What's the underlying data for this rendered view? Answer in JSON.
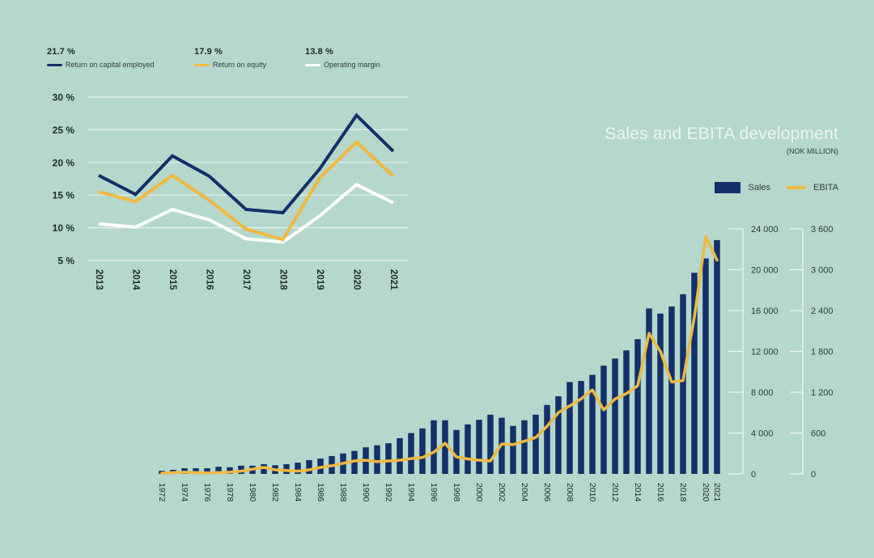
{
  "colors": {
    "background": "#b5d7cc",
    "navy": "#13306a",
    "yellow": "#f0b840",
    "white": "#ffffff",
    "grid": "#e6f1ed"
  },
  "chart_data": [
    {
      "type": "line",
      "title": "",
      "categories": [
        "2013",
        "2014",
        "2015",
        "2016",
        "2017",
        "2018",
        "2019",
        "2020",
        "2021"
      ],
      "ylim": [
        5,
        30
      ],
      "yticks": [
        5,
        10,
        15,
        20,
        25,
        30
      ],
      "ytick_labels": [
        "5 %",
        "10 %",
        "15 %",
        "20 %",
        "25 %",
        "30 %"
      ],
      "grid": true,
      "legend_position": "top-left",
      "series": [
        {
          "name": "Return on capital employed",
          "headline": "21.7 %",
          "color": "#13306a",
          "values": [
            18.0,
            15.1,
            21.0,
            17.9,
            12.8,
            12.3,
            19.0,
            27.2,
            21.7
          ]
        },
        {
          "name": "Return on equity",
          "headline": "17.9 %",
          "color": "#f0b840",
          "values": [
            15.5,
            14.0,
            18.0,
            14.2,
            9.8,
            8.2,
            17.6,
            23.1,
            17.9
          ]
        },
        {
          "name": "Operating margin",
          "headline": "13.8 %",
          "color": "#ffffff",
          "values": [
            10.6,
            10.1,
            12.8,
            11.2,
            8.3,
            7.8,
            11.8,
            16.6,
            13.8
          ]
        }
      ]
    },
    {
      "type": "bar",
      "title": "Sales and EBITA development",
      "subtitle": "(NOK MILLION)",
      "legend_position": "top-right",
      "x": [
        1972,
        1973,
        1974,
        1975,
        1976,
        1977,
        1978,
        1979,
        1980,
        1981,
        1982,
        1983,
        1984,
        1985,
        1986,
        1987,
        1988,
        1989,
        1990,
        1991,
        1992,
        1993,
        1994,
        1995,
        1996,
        1997,
        1998,
        1999,
        2000,
        2001,
        2002,
        2003,
        2004,
        2005,
        2006,
        2007,
        2008,
        2009,
        2010,
        2011,
        2012,
        2013,
        2014,
        2015,
        2016,
        2017,
        2018,
        2019,
        2020,
        2021
      ],
      "xtick_labels": [
        "1972",
        "1974",
        "1976",
        "1978",
        "1980",
        "1982",
        "1984",
        "1986",
        "1988",
        "1990",
        "1992",
        "1994",
        "1996",
        "1998",
        "2000",
        "2002",
        "2004",
        "2006",
        "2008",
        "2010",
        "2012",
        "2014",
        "2016",
        "2018",
        "2020",
        "2021"
      ],
      "series": [
        {
          "name": "Sales",
          "type": "bar",
          "axis": "left",
          "color": "#13306a",
          "values": [
            300,
            400,
            550,
            550,
            550,
            700,
            650,
            800,
            800,
            950,
            850,
            950,
            1100,
            1350,
            1500,
            1750,
            2000,
            2250,
            2600,
            2800,
            3000,
            3500,
            4000,
            4450,
            5250,
            5250,
            4300,
            4850,
            5300,
            5800,
            5500,
            4700,
            5250,
            5800,
            6750,
            7600,
            9000,
            9100,
            9700,
            10600,
            11300,
            12100,
            13200,
            16200,
            15700,
            16400,
            17600,
            19700,
            21100,
            22900
          ]
        },
        {
          "name": "EBITA",
          "type": "line",
          "axis": "right",
          "color": "#f0b840",
          "values": [
            10,
            20,
            25,
            20,
            15,
            20,
            25,
            40,
            70,
            95,
            60,
            50,
            40,
            60,
            95,
            120,
            155,
            190,
            200,
            180,
            190,
            200,
            225,
            240,
            320,
            450,
            250,
            220,
            200,
            190,
            440,
            430,
            480,
            535,
            700,
            900,
            1000,
            1100,
            1235,
            940,
            1100,
            1180,
            1295,
            2065,
            1800,
            1350,
            1370,
            2300,
            3490,
            3140
          ]
        }
      ],
      "left_axis": {
        "ylim": [
          0,
          24000
        ],
        "ticks": [
          0,
          4000,
          8000,
          12000,
          16000,
          20000,
          24000
        ],
        "tick_labels": [
          "0",
          "4 000",
          "8 000",
          "12 000",
          "16 000",
          "20 000",
          "24 000"
        ]
      },
      "right_axis": {
        "ylim": [
          0,
          3600
        ],
        "ticks": [
          0,
          600,
          1200,
          1800,
          2400,
          3000,
          3600
        ],
        "tick_labels": [
          "0",
          "600",
          "1 200",
          "1 800",
          "2 400",
          "3 000",
          "3 600"
        ]
      }
    }
  ],
  "labels": {
    "sales_legend": "Sales",
    "ebita_legend": "EBITA"
  }
}
